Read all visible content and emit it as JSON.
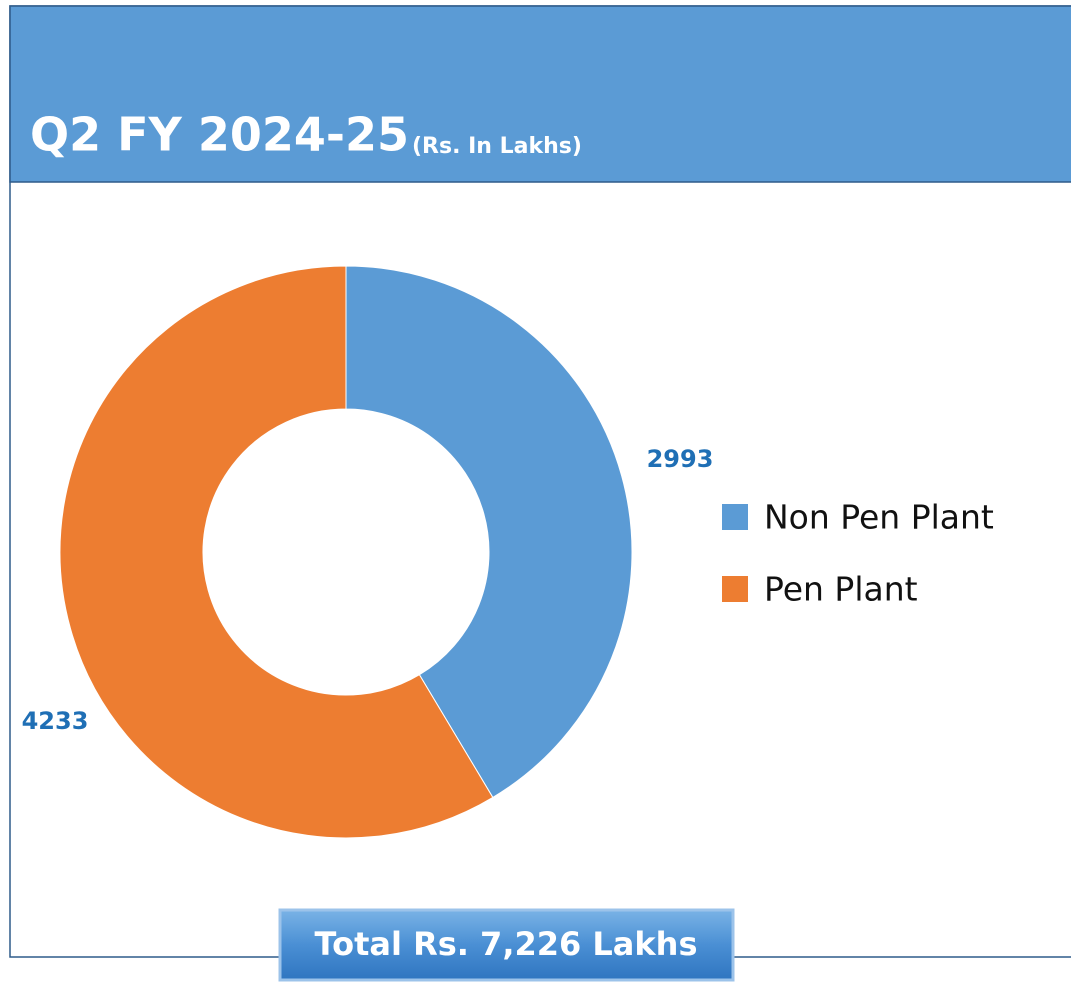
{
  "chart_data": {
    "type": "donut",
    "title": "Q2 FY 2024-25",
    "subtitle": "(Rs. In Lakhs)",
    "categories": [
      "Non Pen Plant",
      "Pen Plant"
    ],
    "values": [
      2993,
      4233
    ],
    "colors": [
      "#5b9bd5",
      "#ed7d31"
    ],
    "legend": "right",
    "total_label": "Total Rs. 7,226 Lakhs"
  }
}
